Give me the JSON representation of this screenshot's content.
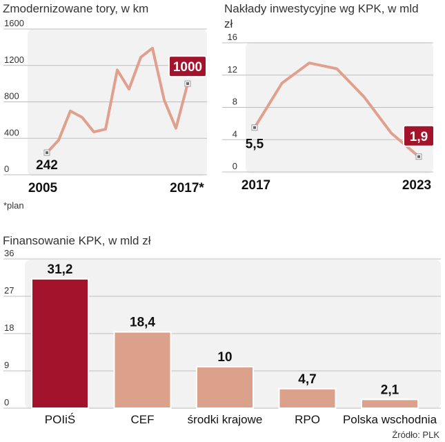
{
  "footnote": "*plan",
  "source": "Źródło: PLK",
  "colors": {
    "line": "#e0a08d",
    "bar": "#dca18b",
    "highlight": "#a3142c",
    "panel": "#f2f2f2",
    "marker": "#666666"
  },
  "chart_data": [
    {
      "type": "line",
      "title": "Zmodernizowane tory, w km",
      "ylim": [
        0,
        1600
      ],
      "yticks": [
        "0",
        "400",
        "800",
        "1200",
        "1600"
      ],
      "x": [
        2005,
        2006,
        2007,
        2008,
        2009,
        2010,
        2011,
        2012,
        2013,
        2014,
        2015,
        2016,
        2017
      ],
      "values": [
        242,
        380,
        700,
        630,
        470,
        500,
        1150,
        940,
        1290,
        1390,
        820,
        510,
        1000
      ],
      "xlabels": [
        "2005",
        "2017*"
      ],
      "start_label": "242",
      "end_label": "1000"
    },
    {
      "type": "line",
      "title": "Nakłady inwestycyjne wg KPK, w mld",
      "title_line2": "zł",
      "ylim": [
        0,
        16
      ],
      "yticks": [
        "0",
        "4",
        "8",
        "12",
        "16"
      ],
      "x": [
        2017,
        2018,
        2019,
        2020,
        2021,
        2022,
        2023
      ],
      "values": [
        5.5,
        11.0,
        13.5,
        12.8,
        9.3,
        4.8,
        1.9
      ],
      "xlabels": [
        "2017",
        "2023"
      ],
      "start_label": "5,5",
      "end_label": "1,9"
    },
    {
      "type": "bar",
      "title": "Finansowanie KPK, w mld zł",
      "ylim": [
        0,
        36
      ],
      "yticks": [
        "0",
        "9",
        "18",
        "27",
        "36"
      ],
      "categories": [
        "POIiŚ",
        "CEF",
        "środki krajowe",
        "RPO",
        "Polska wschodnia"
      ],
      "values": [
        31.2,
        18.4,
        10,
        4.7,
        2.1
      ],
      "value_labels": [
        "31,2",
        "18,4",
        "10",
        "4,7",
        "2,1"
      ],
      "highlight_index": 0
    }
  ]
}
